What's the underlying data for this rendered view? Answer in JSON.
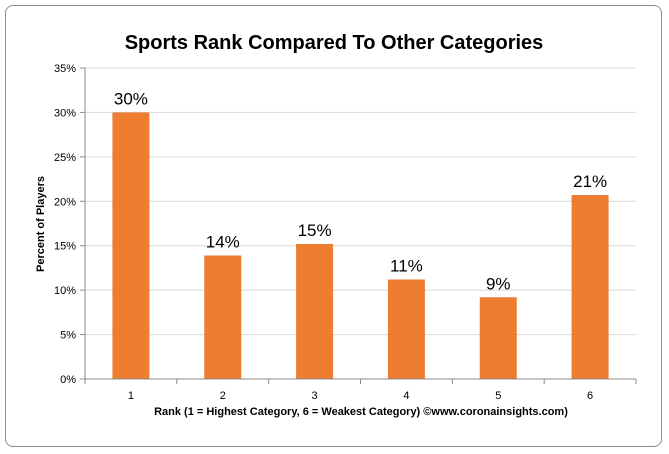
{
  "chart_data": {
    "type": "bar",
    "title": "Sports Rank Compared To Other Categories",
    "xlabel": "Rank (1 = Highest Category, 6 = Weakest Category)  ©www.coronainsights.com)",
    "ylabel": "Percent of Players",
    "categories": [
      "1",
      "2",
      "3",
      "4",
      "5",
      "6"
    ],
    "values": [
      30,
      13.9,
      15.2,
      11.2,
      9.2,
      20.7
    ],
    "data_labels": [
      "30%",
      "14%",
      "15%",
      "11%",
      "9%",
      "21%"
    ],
    "ylim": [
      0,
      35
    ],
    "yticks": [
      0,
      5,
      10,
      15,
      20,
      25,
      30,
      35
    ],
    "ytick_labels": [
      "0%",
      "5%",
      "10%",
      "15%",
      "20%",
      "25%",
      "30%",
      "35%"
    ],
    "grid": true,
    "legend": "none",
    "bar_color": "#ED7D31",
    "grid_color": "#D9D9D9"
  }
}
